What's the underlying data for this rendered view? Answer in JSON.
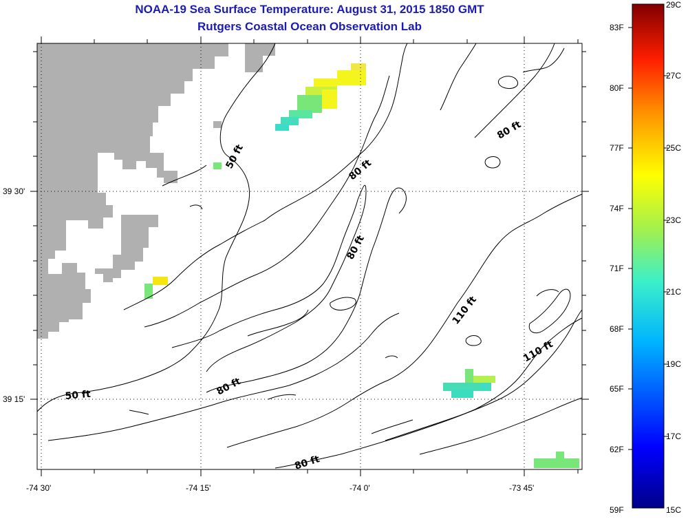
{
  "title": {
    "line1": "NOAA-19 Sea Surface Temperature:  August 31, 2015 1850 GMT",
    "line2": "Rutgers Coastal Ocean Observation Lab"
  },
  "axes": {
    "lat_labels": [
      "39 30'",
      "39 15'"
    ],
    "lon_labels": [
      "-74 30'",
      "-74 15'",
      "-74 0'",
      "-73 45'"
    ]
  },
  "contour_labels": [
    "50 ft",
    "80 ft",
    "80 ft",
    "80 ft",
    "80 ft",
    "110 ft",
    "110 ft",
    "80 ft",
    "50 ft",
    "80 ft"
  ],
  "colorbar": {
    "fahrenheit": [
      "83F",
      "80F",
      "77F",
      "74F",
      "71F",
      "68F",
      "65F",
      "62F",
      "59F"
    ],
    "celsius": [
      "29C",
      "27C",
      "25C",
      "23C",
      "21C",
      "19C",
      "17C",
      "15C"
    ]
  },
  "colors": {
    "title": "#1c1cb4",
    "land": "#b0b0b0",
    "sst_yellow": "#f5f51e",
    "sst_yellow_green": "#c8f03c",
    "sst_green": "#78e678",
    "sst_teal": "#3cdcb4"
  }
}
